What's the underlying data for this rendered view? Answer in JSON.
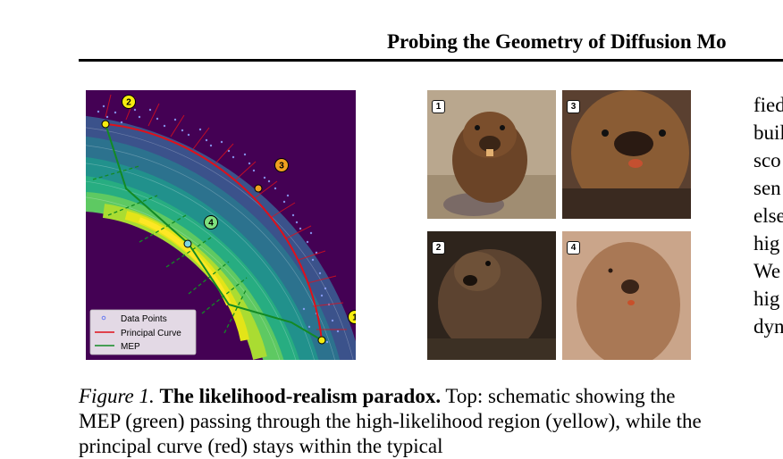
{
  "header": {
    "title": "Probing the Geometry of Diffusion Mo"
  },
  "figure": {
    "legend": {
      "items": [
        {
          "label": "Data Points",
          "color": "#6a7cf0"
        },
        {
          "label": "Principal Curve",
          "color": "#e0101a"
        },
        {
          "label": "MEP",
          "color": "#138a24"
        }
      ]
    },
    "markers": [
      {
        "label": "1",
        "fill": "#f5ec10"
      },
      {
        "label": "2",
        "fill": "#f5ec10"
      },
      {
        "label": "3",
        "fill": "#f0a020"
      },
      {
        "label": "4",
        "fill": "#7ee07e"
      }
    ],
    "photos": [
      {
        "badge": "1",
        "description_icon": "beaver-photo-icon"
      },
      {
        "badge": "3",
        "description_icon": "beaver-face-photo-icon"
      },
      {
        "badge": "2",
        "description_icon": "beaver-dark-photo-icon"
      },
      {
        "badge": "4",
        "description_icon": "blurred-beaver-photo-icon"
      }
    ]
  },
  "caption": {
    "label": "Figure 1.",
    "title": "The likelihood-realism paradox.",
    "text": " Top: schematic showing the MEP (green) passing through the high-likelihood region (yellow), while the principal curve (red) stays within the typical"
  },
  "right_column": {
    "lines": [
      "fied",
      "buil",
      "sco",
      "sen",
      "else",
      "hig",
      "We",
      "hig",
      "dyn"
    ]
  },
  "colors": {
    "background_plot": "#440154",
    "principal_curve": "#e0101a",
    "mep": "#138a24"
  }
}
